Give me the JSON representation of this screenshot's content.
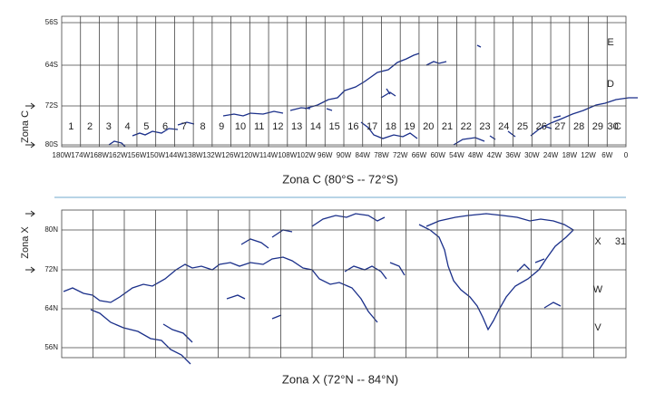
{
  "panels": [
    {
      "axis_label": "Zona C",
      "lat_labels": [
        "56S",
        "64S",
        "72S",
        "80S"
      ],
      "zones": [
        "1",
        "2",
        "3",
        "4",
        "5",
        "6",
        "7",
        "8",
        "9",
        "10",
        "11",
        "12",
        "13",
        "14",
        "15",
        "16",
        "17",
        "18",
        "19",
        "20",
        "21",
        "22",
        "23",
        "24",
        "25",
        "26",
        "27",
        "28",
        "29",
        "30"
      ],
      "band_letters": [
        "E",
        "D",
        "C"
      ],
      "lon_labels": [
        "180W",
        "174W",
        "168W",
        "162W",
        "156W",
        "150W",
        "144W",
        "138W",
        "132W",
        "126W",
        "120W",
        "114W",
        "108W",
        "102W",
        "96W",
        "90W",
        "84W",
        "78W",
        "72W",
        "66W",
        "60W",
        "54W",
        "48W",
        "42W",
        "36W",
        "30W",
        "24W",
        "18W",
        "12W",
        "6W",
        "0"
      ],
      "caption": "Zona C (80°S -- 72°S)"
    },
    {
      "axis_label": "Zona X",
      "lat_labels": [
        "80N",
        "72N",
        "64N",
        "56N"
      ],
      "band_letters": [
        "X",
        "W",
        "V"
      ],
      "zone_label": "31",
      "caption": "Zona X (72°N -- 84°N)"
    }
  ]
}
